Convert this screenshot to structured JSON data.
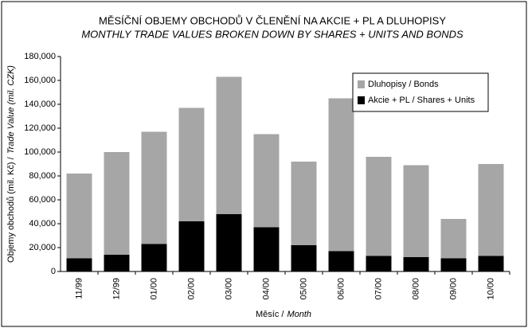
{
  "chart_data": {
    "type": "stacked_bar",
    "title": "MĚSÍČNÍ OBJEMY OBCHODŮ V ČLENĚNÍ NA AKCIE + PL A DLUHOPISY",
    "subtitle": "MONTHLY TRADE VALUES BROKEN DOWN BY SHARES + UNITS AND BONDS",
    "x_label_cz": "Měsíc /",
    "x_label_en": "Month",
    "y_label_cz": "Objemy obchodů (mil. Kč) /",
    "y_label_en": "Trade Value (mil. CZK)",
    "categories": [
      "11/99",
      "12/99",
      "01/00",
      "02/00",
      "03/00",
      "04/00",
      "05/00",
      "06/00",
      "07/00",
      "08/00",
      "09/00",
      "10/00"
    ],
    "series": [
      {
        "name": "Akcie + PL / Shares + Units",
        "color": "#000000",
        "values": [
          11000,
          14000,
          23000,
          42000,
          48000,
          37000,
          22000,
          17000,
          13000,
          12000,
          11000,
          13000
        ]
      },
      {
        "name": "Dluhopisy / Bonds",
        "color": "#a6a6a6",
        "values": [
          71000,
          86000,
          94000,
          95000,
          115000,
          78000,
          70000,
          128000,
          83000,
          77000,
          33000,
          77000
        ]
      }
    ],
    "legend_order": [
      1,
      0
    ],
    "ylim": [
      0,
      180000
    ],
    "yticks": [
      0,
      {
        "value": 20000,
        "label": "20,000"
      },
      {
        "value": 40000,
        "label": "40,000"
      },
      {
        "value": 60000,
        "label": "60,000"
      },
      {
        "value": 80000,
        "label": "80,000"
      },
      {
        "value": 100000,
        "label": "100,000"
      },
      {
        "value": 120000,
        "label": "120,000"
      },
      {
        "value": 140000,
        "label": "140,000"
      },
      {
        "value": 160000,
        "label": "160,000"
      },
      {
        "value": 180000,
        "label": "180,000"
      }
    ],
    "grid": false,
    "legend": "upper right"
  }
}
